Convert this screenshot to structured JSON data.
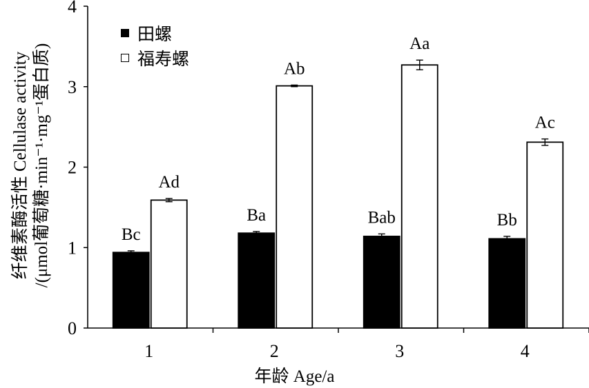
{
  "chart_data": {
    "type": "bar",
    "categories": [
      "1",
      "2",
      "3",
      "4"
    ],
    "series": [
      {
        "name": "田螺",
        "color": "#000000",
        "values": [
          0.94,
          1.18,
          1.14,
          1.11
        ],
        "errors": [
          0.02,
          0.02,
          0.03,
          0.03
        ],
        "labels": [
          "Bc",
          "Ba",
          "Bab",
          "Bb"
        ]
      },
      {
        "name": "福寿螺",
        "color": "#ffffff",
        "values": [
          1.59,
          3.01,
          3.27,
          2.31
        ],
        "errors": [
          0.02,
          0.01,
          0.06,
          0.04
        ],
        "labels": [
          "Ad",
          "Ab",
          "Aa",
          "Ac"
        ]
      }
    ],
    "xlabel": "年龄 Age/a",
    "ylabel_line1": "纤维素酶活性 Cellulase activity",
    "ylabel_line2": "/(μmol葡萄糖·min⁻¹·mg⁻¹蛋白质)",
    "ylim": [
      0,
      4
    ],
    "yticks": [
      "0",
      "1",
      "2",
      "3",
      "4"
    ],
    "grid": false,
    "legend_position": "top-left"
  }
}
